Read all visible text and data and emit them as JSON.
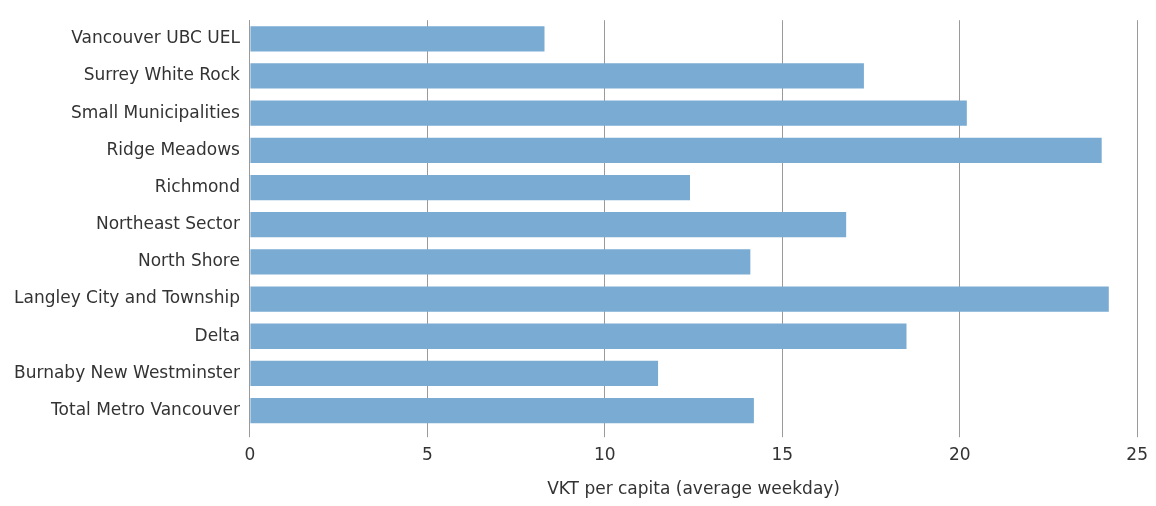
{
  "chart_data": {
    "type": "bar",
    "orientation": "horizontal",
    "xlabel": "VKT per capita (average weekday)",
    "categories": [
      "Vancouver UBC UEL",
      "Surrey White Rock",
      "Small Municipalities",
      "Ridge Meadows",
      "Richmond",
      "Northeast Sector",
      "North Shore",
      "Langley City and Township",
      "Delta",
      "Burnaby New Westminster",
      "Total Metro Vancouver"
    ],
    "values": [
      8.3,
      17.3,
      20.2,
      24.0,
      12.4,
      16.8,
      14.1,
      24.2,
      18.5,
      11.5,
      14.2
    ],
    "color": "#7aabd2",
    "xlim": [
      0,
      25
    ],
    "xticks": [
      0,
      5,
      10,
      15,
      20,
      25
    ],
    "grid": "x",
    "legend": false
  }
}
